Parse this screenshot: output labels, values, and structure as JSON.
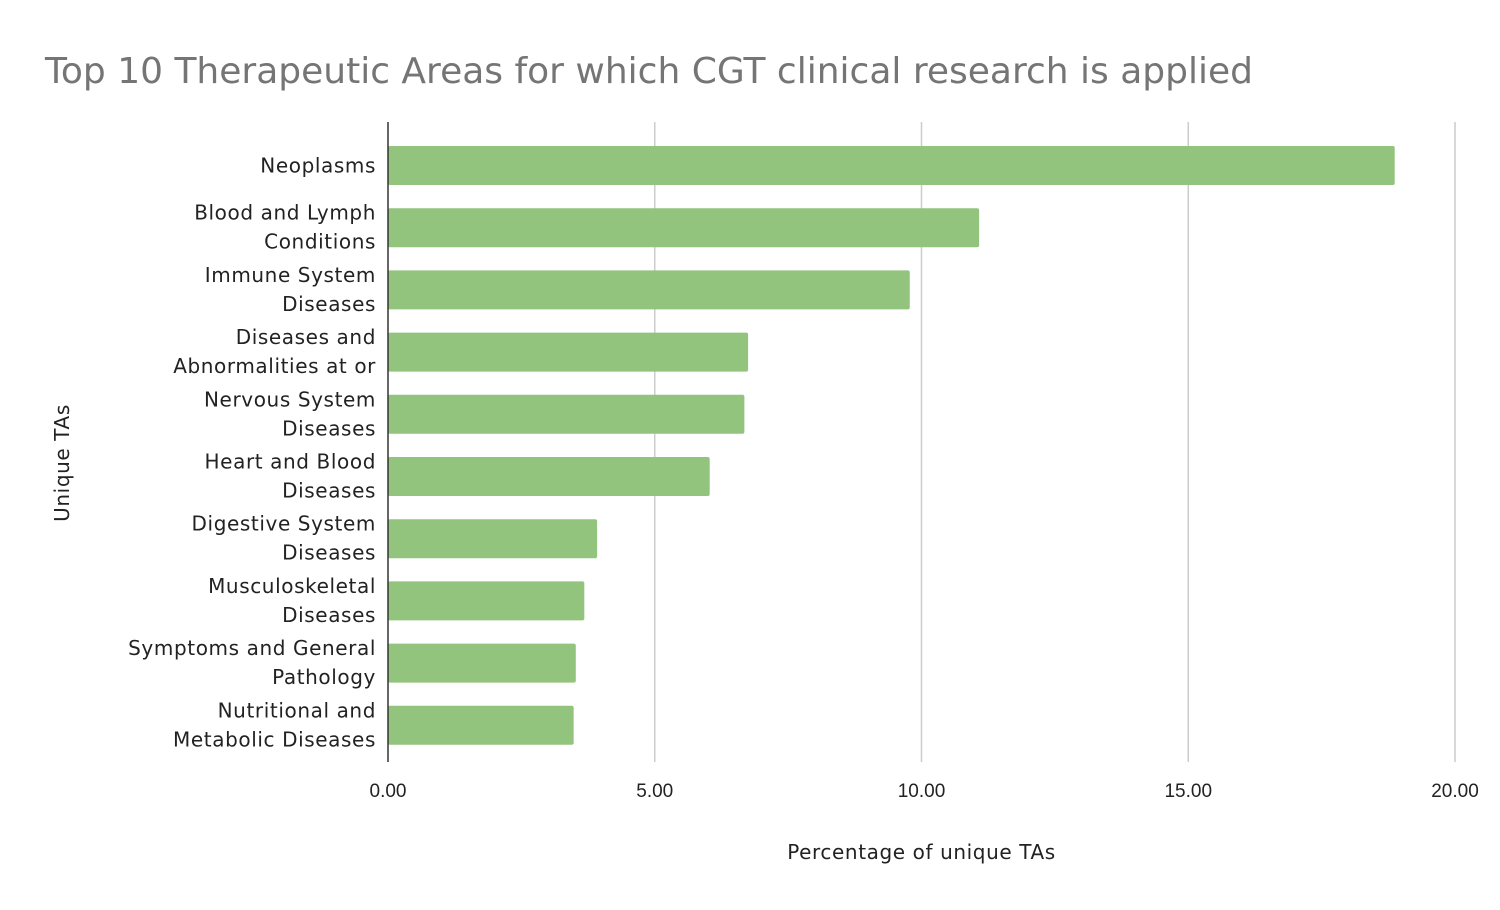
{
  "chart_data": {
    "type": "bar",
    "orientation": "horizontal",
    "title": "Top 10 Therapeutic Areas for which CGT clinical research is applied",
    "xlabel": "Percentage of unique TAs",
    "ylabel": "Unique TAs",
    "categories": [
      [
        "Neoplasms"
      ],
      [
        "Blood and Lymph",
        "Conditions"
      ],
      [
        "Immune System",
        "Diseases"
      ],
      [
        "Diseases and",
        "Abnormalities at or"
      ],
      [
        "Nervous System",
        "Diseases"
      ],
      [
        "Heart and Blood",
        "Diseases"
      ],
      [
        "Digestive System",
        "Diseases"
      ],
      [
        "Musculoskeletal",
        "Diseases"
      ],
      [
        "Symptoms and General",
        "Pathology"
      ],
      [
        "Nutritional and",
        "Metabolic Diseases"
      ]
    ],
    "values": [
      18.87,
      11.08,
      9.78,
      6.75,
      6.68,
      6.03,
      3.92,
      3.68,
      3.52,
      3.48
    ],
    "xlim": [
      0,
      20
    ],
    "xticks": [
      "0.00",
      "5.00",
      "10.00",
      "15.00",
      "20.00"
    ],
    "xtick_values": [
      0,
      5,
      10,
      15,
      20
    ],
    "grid": true,
    "legend": "none",
    "bar_color": "#93c47d"
  }
}
